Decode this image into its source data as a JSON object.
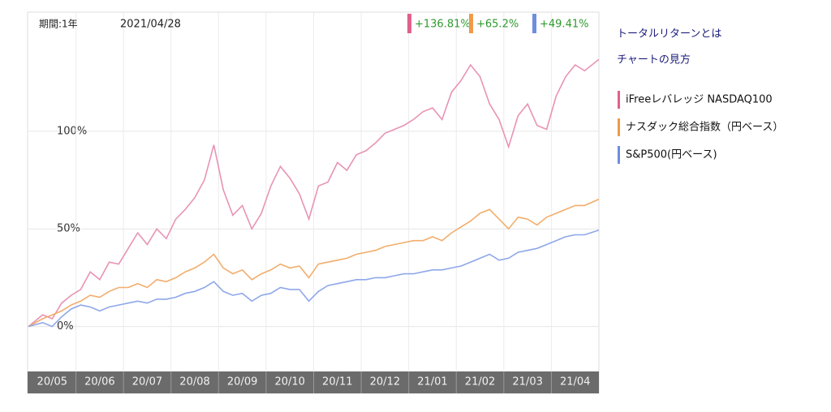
{
  "chart_data": {
    "type": "line",
    "period": "期間:1年",
    "date": "2021/04/28",
    "links": [
      "トータルリターンとは",
      "チャートの見方"
    ],
    "categories": [
      "20/05",
      "20/06",
      "20/07",
      "20/08",
      "20/09",
      "20/10",
      "20/11",
      "20/12",
      "21/01",
      "21/02",
      "21/03",
      "21/04"
    ],
    "ylim": [
      -23,
      161
    ],
    "yticks": [
      {
        "value": 0,
        "label": "0%"
      },
      {
        "value": 50,
        "label": "50%"
      },
      {
        "value": 100,
        "label": "100%"
      }
    ],
    "grid": true,
    "series": [
      {
        "name": "iFreeレバレッジ NASDAQ100",
        "color": "#e893b5",
        "marker_color": "#e0608e",
        "value_label": "+136.81%",
        "values": [
          [
            0,
            6,
            4,
            12,
            16
          ],
          [
            19,
            28,
            24,
            33,
            32
          ],
          [
            40,
            48,
            42,
            50,
            45
          ],
          [
            55,
            60,
            66,
            75,
            93
          ],
          [
            70,
            57,
            62,
            50,
            58
          ],
          [
            72,
            82,
            76,
            68,
            55
          ],
          [
            72,
            74,
            84,
            80,
            88
          ],
          [
            90,
            94,
            99,
            101,
            103
          ],
          [
            106,
            110,
            112,
            106,
            120
          ],
          [
            126,
            134,
            128,
            114,
            106
          ],
          [
            92,
            108,
            114,
            103,
            101
          ],
          [
            118,
            128,
            134,
            131,
            136.81
          ]
        ]
      },
      {
        "name": "ナスダック総合指数（円ベース）",
        "color": "#f2ad6c",
        "marker_color": "#f09a48",
        "value_label": "+65.2%",
        "values": [
          [
            0,
            4,
            6,
            8,
            11
          ],
          [
            13,
            16,
            15,
            18,
            20
          ],
          [
            20,
            22,
            20,
            24,
            23
          ],
          [
            25,
            28,
            30,
            33,
            37
          ],
          [
            30,
            27,
            29,
            24,
            27
          ],
          [
            29,
            32,
            30,
            31,
            25
          ],
          [
            32,
            33,
            34,
            35,
            37
          ],
          [
            38,
            39,
            41,
            42,
            43
          ],
          [
            44,
            44,
            46,
            44,
            48
          ],
          [
            51,
            54,
            58,
            60,
            55
          ],
          [
            50,
            56,
            55,
            52,
            56
          ],
          [
            58,
            60,
            62,
            62,
            65.2
          ]
        ]
      },
      {
        "name": "S&P500(円ベース)",
        "color": "#8fa7ea",
        "marker_color": "#6f8ee0",
        "value_label": "+49.41%",
        "values": [
          [
            0,
            2,
            0,
            5,
            9
          ],
          [
            11,
            10,
            8,
            10,
            11
          ],
          [
            12,
            13,
            12,
            14,
            14
          ],
          [
            15,
            17,
            18,
            20,
            23
          ],
          [
            18,
            16,
            17,
            13,
            16
          ],
          [
            17,
            20,
            19,
            19,
            13
          ],
          [
            18,
            21,
            22,
            23,
            24
          ],
          [
            24,
            25,
            25,
            26,
            27
          ],
          [
            27,
            28,
            29,
            29,
            30
          ],
          [
            31,
            33,
            35,
            37,
            34
          ],
          [
            35,
            38,
            39,
            40,
            42
          ],
          [
            44,
            46,
            47,
            47,
            49.41
          ]
        ]
      }
    ]
  }
}
